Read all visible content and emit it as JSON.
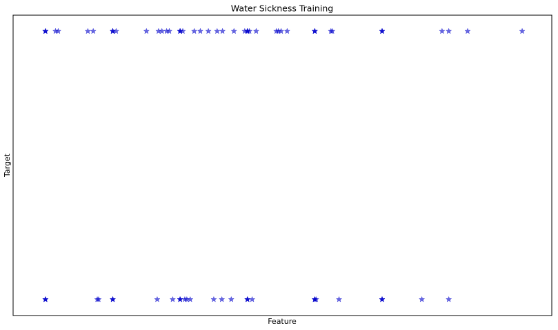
{
  "chart_data": {
    "type": "scatter",
    "title": "Water Sickness Training",
    "xlabel": "Feature",
    "ylabel": "Target",
    "x": [
      0,
      0,
      0,
      0.15,
      0.19,
      0.63,
      0.71,
      1,
      1,
      1,
      1.05,
      1.5,
      1.68,
      1.73,
      1.8,
      1.84,
      2,
      2,
      2,
      2.04,
      2.21,
      2.3,
      2.42,
      2.55,
      2.63,
      2.8,
      2.96,
      3,
      3,
      3,
      3.03,
      3.13,
      3.43,
      3.46,
      3.5,
      3.59,
      4,
      4,
      4,
      4.24,
      4.26,
      5,
      5,
      5,
      5.89,
      5.99,
      6.27,
      7.08,
      0,
      0,
      0,
      0.77,
      0.79,
      1,
      1,
      1,
      1.66,
      1.89,
      2,
      2,
      2,
      2.07,
      2.1,
      2.15,
      2.5,
      2.62,
      2.76,
      3,
      3,
      3,
      3.07,
      4,
      4,
      4,
      4.02,
      4.36,
      5,
      5,
      5,
      5.59,
      5.99
    ],
    "y": [
      1,
      1,
      1,
      1,
      1,
      1,
      1,
      1,
      1,
      1,
      1,
      1,
      1,
      1,
      1,
      1,
      1,
      1,
      1,
      1,
      1,
      1,
      1,
      1,
      1,
      1,
      1,
      1,
      1,
      1,
      1,
      1,
      1,
      1,
      1,
      1,
      1,
      1,
      1,
      1,
      1,
      1,
      1,
      1,
      1,
      1,
      1,
      1,
      0,
      0,
      0,
      0,
      0,
      0,
      0,
      0,
      0,
      0,
      0,
      0,
      0,
      0,
      0,
      0,
      0,
      0,
      0,
      0,
      0,
      0,
      0,
      0,
      0,
      0,
      0,
      0,
      0,
      0,
      0,
      0,
      0
    ],
    "xlim": [
      -0.48,
      7.52
    ],
    "ylim": [
      -0.06,
      1.06
    ],
    "color": "#0000cc",
    "alpha": 0.6,
    "marker": "star"
  }
}
